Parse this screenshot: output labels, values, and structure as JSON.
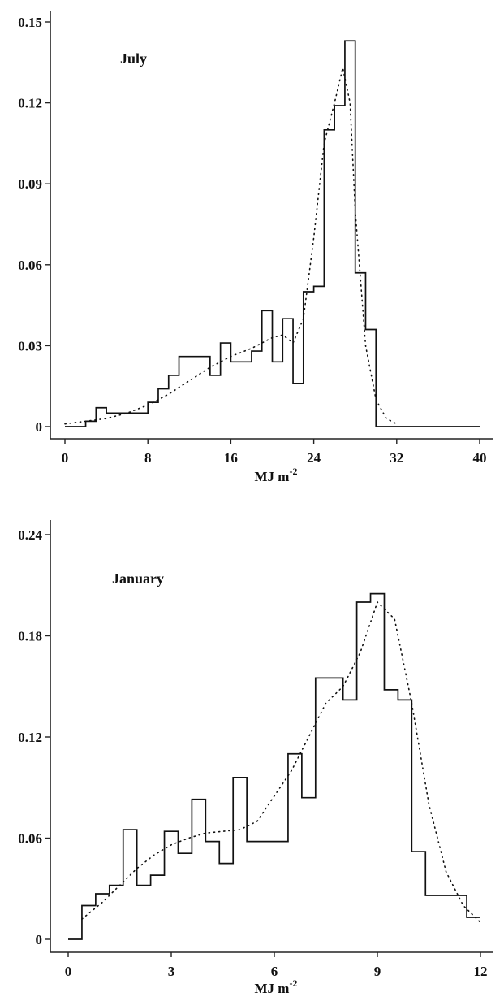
{
  "chart_data": [
    {
      "type": "histogram",
      "panel_label": "July",
      "xlabel": "MJ m",
      "xlabel_sup": "-2",
      "xlim": [
        0,
        40
      ],
      "ylim": [
        0,
        0.15
      ],
      "x_ticks": [
        0,
        8,
        16,
        24,
        32,
        40
      ],
      "y_ticks": [
        0,
        0.03,
        0.06,
        0.09,
        0.12,
        0.15
      ],
      "y_tick_labels": [
        "0",
        "0.03",
        "0.06",
        "0.09",
        "0.12",
        "0.15"
      ],
      "bins": {
        "edges": [
          0,
          2,
          3,
          4,
          5,
          8,
          9,
          10,
          11,
          12,
          14,
          15,
          16,
          18,
          19,
          20,
          21,
          22,
          23,
          24,
          25,
          26,
          27,
          28,
          29,
          30,
          40
        ],
        "values": [
          0.0,
          0.002,
          0.007,
          0.005,
          0.005,
          0.009,
          0.014,
          0.019,
          0.026,
          0.026,
          0.019,
          0.031,
          0.024,
          0.028,
          0.043,
          0.024,
          0.04,
          0.016,
          0.05,
          0.052,
          0.11,
          0.119,
          0.143,
          0.057,
          0.036,
          0.0
        ]
      },
      "fit_curve": {
        "x": [
          0,
          2,
          4,
          6,
          8,
          10,
          12,
          14,
          16,
          18,
          20,
          21,
          22,
          23,
          24,
          25,
          26,
          26.8,
          27.5,
          28,
          29,
          30,
          31,
          32
        ],
        "y": [
          0.001,
          0.002,
          0.003,
          0.005,
          0.008,
          0.012,
          0.017,
          0.022,
          0.026,
          0.029,
          0.033,
          0.034,
          0.031,
          0.04,
          0.07,
          0.105,
          0.12,
          0.133,
          0.12,
          0.08,
          0.03,
          0.01,
          0.003,
          0.001
        ]
      }
    },
    {
      "type": "histogram",
      "panel_label": "January",
      "xlabel": "MJ m",
      "xlabel_sup": "-2",
      "xlim": [
        0,
        12
      ],
      "ylim": [
        0,
        0.24
      ],
      "x_ticks": [
        0,
        3,
        6,
        9,
        12
      ],
      "y_ticks": [
        0,
        0.06,
        0.12,
        0.18,
        0.24
      ],
      "y_tick_labels": [
        "0",
        "0.06",
        "0.12",
        "0.18",
        "0.24"
      ],
      "bins": {
        "edges": [
          0,
          0.4,
          0.8,
          1.2,
          1.6,
          2.0,
          2.4,
          2.8,
          3.2,
          3.6,
          4.0,
          4.4,
          4.8,
          5.2,
          5.6,
          6.4,
          6.8,
          7.2,
          8.0,
          8.4,
          8.8,
          9.2,
          9.6,
          10.0,
          10.4,
          10.8,
          11.6,
          12.0
        ],
        "values": [
          0.0,
          0.02,
          0.027,
          0.032,
          0.065,
          0.032,
          0.038,
          0.064,
          0.051,
          0.083,
          0.058,
          0.045,
          0.096,
          0.058,
          0.058,
          0.11,
          0.084,
          0.155,
          0.142,
          0.2,
          0.205,
          0.148,
          0.142,
          0.052,
          0.026,
          0.026,
          0.013
        ]
      },
      "fit_curve": {
        "x": [
          0.4,
          1.0,
          1.5,
          2.0,
          2.5,
          3.0,
          3.5,
          4.0,
          4.5,
          5.0,
          5.5,
          6.0,
          6.5,
          7.0,
          7.5,
          8.0,
          8.5,
          9.0,
          9.5,
          10.0,
          10.5,
          11.0,
          11.5,
          12.0
        ],
        "y": [
          0.012,
          0.022,
          0.032,
          0.042,
          0.05,
          0.056,
          0.06,
          0.063,
          0.064,
          0.065,
          0.07,
          0.085,
          0.1,
          0.12,
          0.14,
          0.15,
          0.17,
          0.2,
          0.19,
          0.14,
          0.08,
          0.04,
          0.02,
          0.01
        ]
      }
    }
  ]
}
